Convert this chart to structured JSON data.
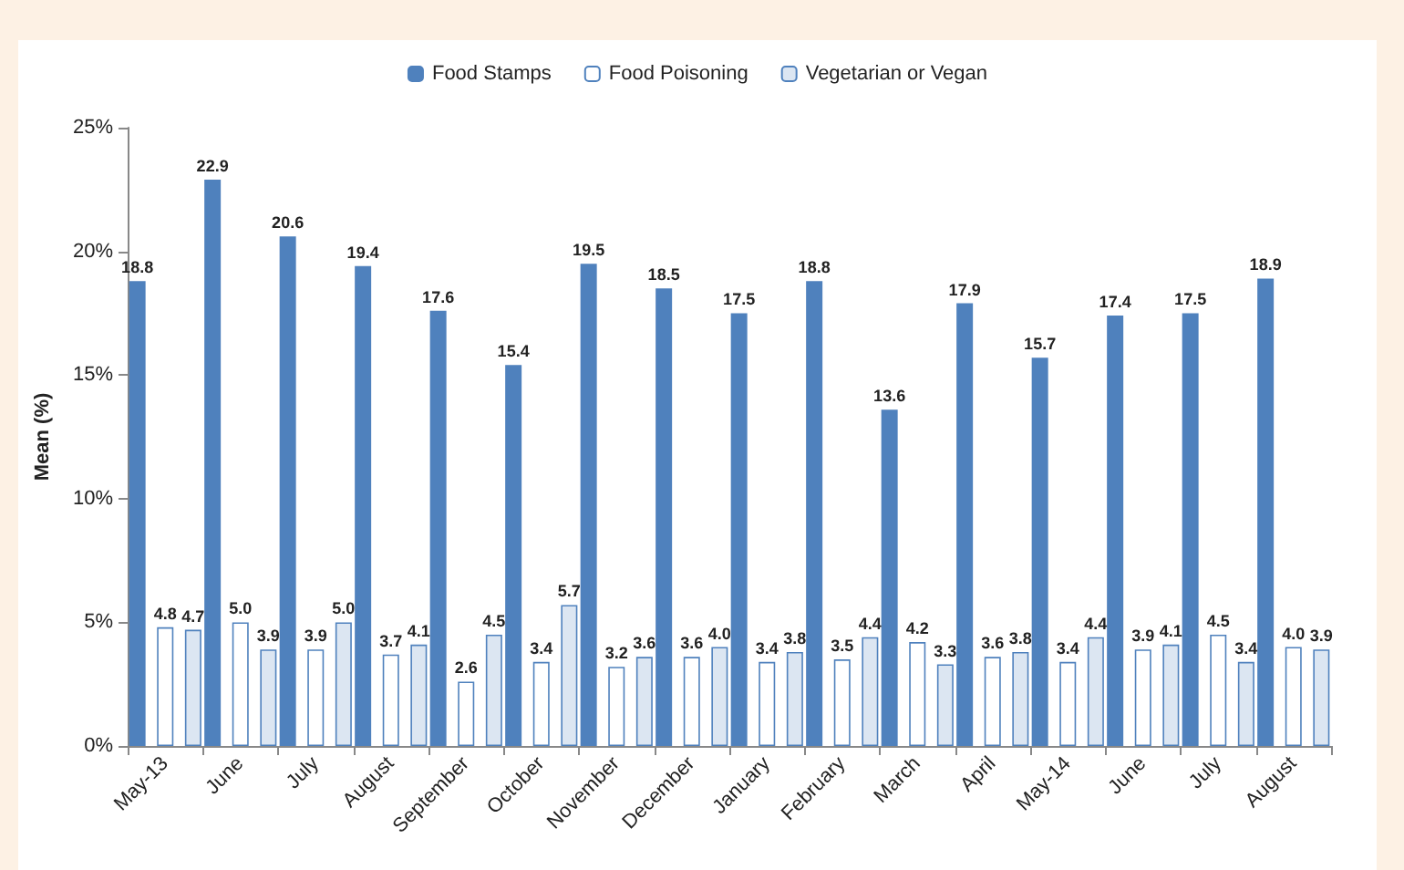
{
  "chart_data": {
    "type": "bar",
    "ylabel": "Mean (%)",
    "categories": [
      "May-13",
      "June",
      "July",
      "August",
      "September",
      "October",
      "November",
      "December",
      "January",
      "February",
      "March",
      "April",
      "May-14",
      "June",
      "July",
      "August"
    ],
    "series": [
      {
        "name": "Food Stamps",
        "color": "#4f81bd",
        "values": [
          18.8,
          22.9,
          20.6,
          19.4,
          17.6,
          15.4,
          19.5,
          18.5,
          17.5,
          18.8,
          13.6,
          17.9,
          15.7,
          17.4,
          17.5,
          18.9
        ],
        "value_labels": [
          "18.8",
          "22.9",
          "20.6",
          "19.4",
          "17.6",
          "15.4",
          "19.5",
          "18.5",
          "17.5",
          "18.8",
          "13.6",
          "17.9",
          "15.7",
          "17.4",
          "17.5",
          "18.9"
        ]
      },
      {
        "name": "Food Poisoning",
        "color": "#ffffff",
        "values": [
          4.8,
          5.0,
          3.9,
          3.7,
          2.6,
          3.4,
          3.2,
          3.6,
          3.4,
          3.5,
          4.2,
          3.6,
          3.4,
          3.9,
          4.5,
          4.0
        ],
        "value_labels": [
          "4.8",
          "5.0",
          "3.9",
          "3.7",
          "2.6",
          "3.4",
          "3.2",
          "3.6",
          "3.4",
          "3.5",
          "4.2",
          "3.6",
          "3.4",
          "3.9",
          "4.5",
          "4.0"
        ]
      },
      {
        "name": "Vegetarian or Vegan",
        "color": "#dce6f2",
        "values": [
          4.7,
          3.9,
          5.0,
          4.1,
          4.5,
          5.7,
          3.6,
          4.0,
          3.8,
          4.4,
          3.3,
          3.8,
          4.4,
          4.1,
          3.4,
          3.9
        ],
        "value_labels": [
          "4.7",
          "3.9",
          "5.0",
          "4.1",
          "4.5",
          "5.7",
          "3.6",
          "4.0",
          "3.8",
          "4.4",
          "3.3",
          "3.8",
          "4.4",
          "4.1",
          "3.4",
          "3.9"
        ]
      }
    ],
    "ylim": [
      0,
      25
    ],
    "yticks": [
      {
        "value": 0,
        "label": "0%"
      },
      {
        "value": 5,
        "label": "5%"
      },
      {
        "value": 10,
        "label": "10%"
      },
      {
        "value": 15,
        "label": "15%"
      },
      {
        "value": 20,
        "label": "20%"
      },
      {
        "value": 25,
        "label": "25%"
      }
    ],
    "legend": "top",
    "grid": false
  }
}
